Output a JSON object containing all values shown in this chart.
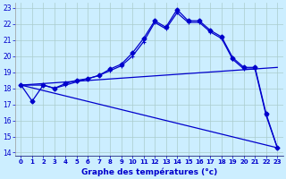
{
  "xlabel": "Graphe des températures (°c)",
  "x_ticks": [
    0,
    1,
    2,
    3,
    4,
    5,
    6,
    7,
    8,
    9,
    10,
    11,
    12,
    13,
    14,
    15,
    16,
    17,
    18,
    19,
    20,
    21,
    22,
    23
  ],
  "ylim": [
    13.8,
    23.3
  ],
  "yticks": [
    14,
    15,
    16,
    17,
    18,
    19,
    20,
    21,
    22,
    23
  ],
  "bg_color": "#cceeff",
  "grid_color": "#aacccc",
  "line_color": "#0000cc",
  "curve1": {
    "x": [
      0,
      1,
      2,
      3,
      4,
      5,
      6,
      7,
      8,
      9,
      10,
      11,
      12,
      13,
      14,
      15,
      16,
      17,
      18,
      19,
      20,
      21,
      22,
      23
    ],
    "y": [
      18.2,
      17.2,
      18.2,
      18.0,
      18.3,
      18.5,
      18.6,
      18.8,
      19.2,
      19.5,
      20.2,
      21.1,
      22.2,
      21.8,
      22.9,
      22.2,
      22.2,
      21.6,
      21.2,
      19.9,
      19.3,
      19.3,
      16.4,
      14.3
    ]
  },
  "curve2": {
    "x": [
      0,
      2,
      3,
      4,
      5,
      6,
      7,
      8,
      9,
      10,
      11,
      12,
      13,
      14,
      15,
      16,
      17,
      18,
      19,
      20,
      21,
      22,
      23
    ],
    "y": [
      18.2,
      18.2,
      18.0,
      18.2,
      18.4,
      18.6,
      18.8,
      19.1,
      19.4,
      20.0,
      20.9,
      22.1,
      21.7,
      22.7,
      22.1,
      22.1,
      21.5,
      21.1,
      19.8,
      19.2,
      19.2,
      16.3,
      14.3
    ]
  },
  "straight1": {
    "x": [
      0,
      23
    ],
    "y": [
      18.2,
      19.3
    ]
  },
  "straight2": {
    "x": [
      0,
      23
    ],
    "y": [
      18.2,
      14.3
    ]
  }
}
